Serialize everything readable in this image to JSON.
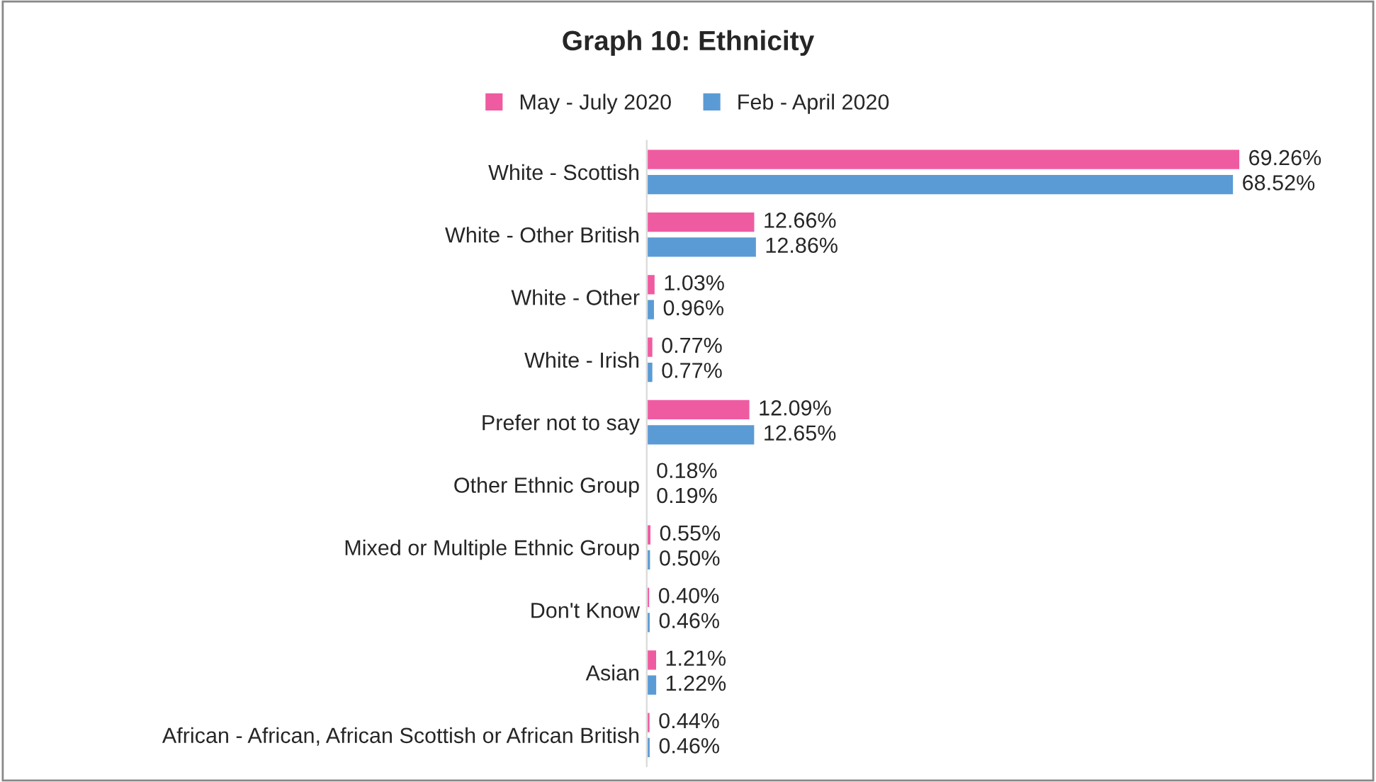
{
  "chart_data": {
    "type": "bar",
    "orientation": "horizontal",
    "title": "Graph 10: Ethnicity",
    "categories": [
      "White - Scottish",
      "White - Other British",
      "White - Other",
      "White - Irish",
      "Prefer not to say",
      "Other Ethnic Group",
      "Mixed or Multiple Ethnic Group",
      "Don't Know",
      "Asian",
      "African - African, African Scottish or African British"
    ],
    "series": [
      {
        "name": "May - July 2020",
        "color": "#ef5ba1",
        "values": [
          69.26,
          12.66,
          1.03,
          0.77,
          12.09,
          0.18,
          0.55,
          0.4,
          1.21,
          0.44
        ],
        "value_labels": [
          "69.26%",
          "12.66%",
          "1.03%",
          "0.77%",
          "12.09%",
          "0.18%",
          "0.55%",
          "0.40%",
          "1.21%",
          "0.44%"
        ]
      },
      {
        "name": "Feb - April 2020",
        "color": "#5b9bd5",
        "values": [
          68.52,
          12.86,
          0.96,
          0.77,
          12.65,
          0.19,
          0.5,
          0.46,
          1.22,
          0.46
        ],
        "value_labels": [
          "68.52%",
          "12.86%",
          "0.96%",
          "0.77%",
          "12.65%",
          "0.19%",
          "0.50%",
          "0.46%",
          "1.22%",
          "0.46%"
        ]
      }
    ],
    "legend": "top",
    "tick_labels": "y",
    "grid": false
  }
}
